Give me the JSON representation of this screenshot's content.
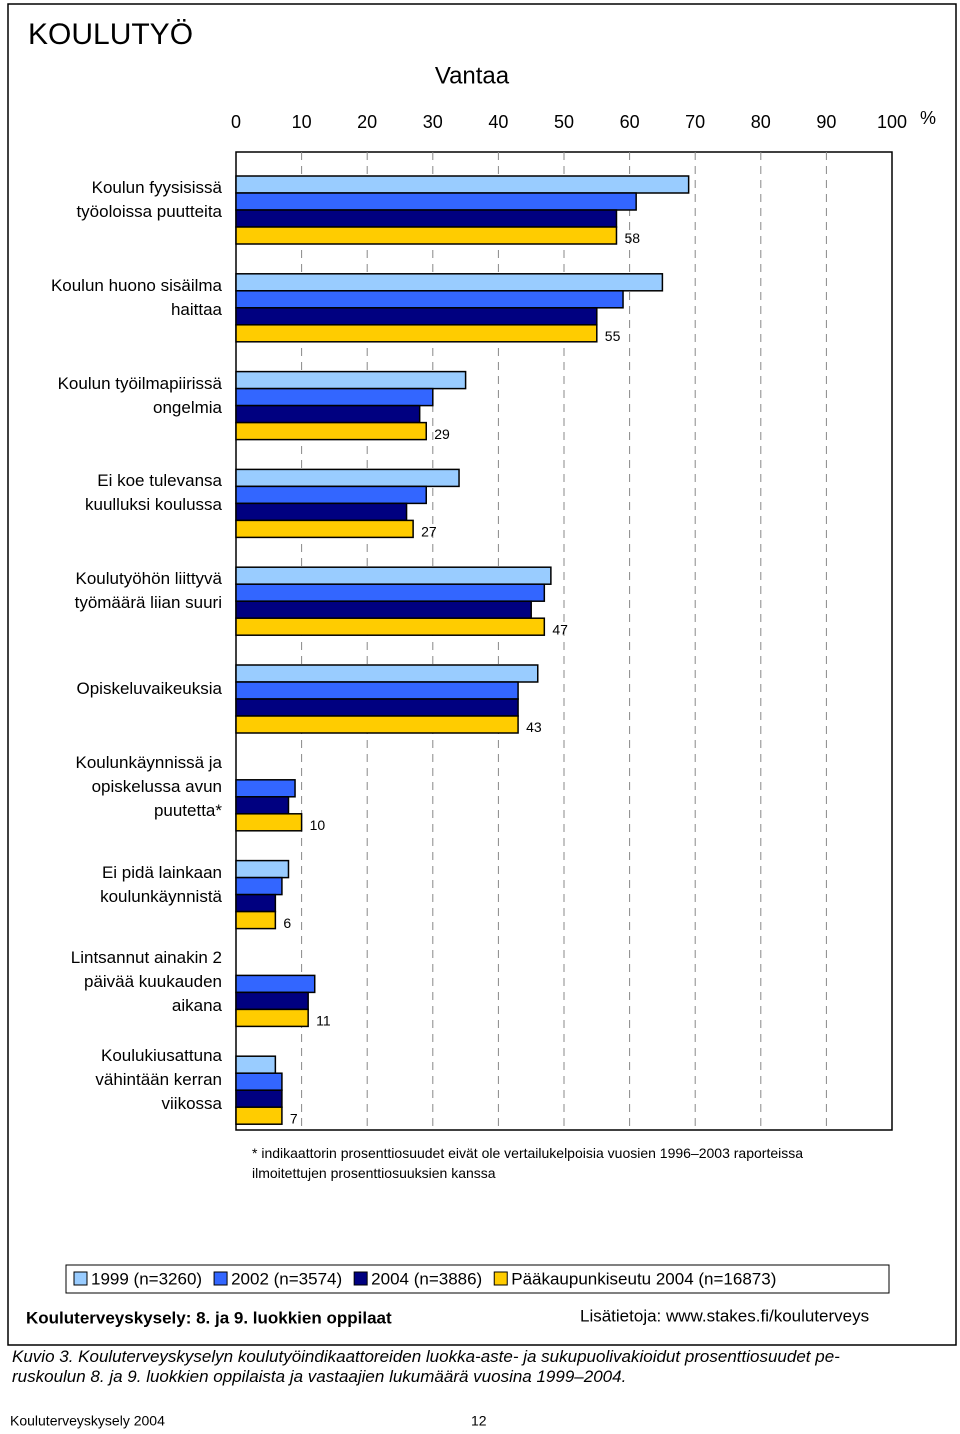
{
  "chart_data": {
    "type": "bar",
    "orientation": "horizontal",
    "title": "KOULUTYÖ",
    "subtitle": "Vantaa",
    "x_unit": "%",
    "categories": [
      "Koulun fyysisissä\ntyöoloissa puutteita",
      "Koulun huono sisäilma\nhaittaa",
      "Koulun työilmapiirissä\nongelmia",
      "Ei koe tulevansa\nkuulluksi koulussa",
      "Koulutyöhön liittyvä\ntyömäärä liian suuri",
      "Opiskeluvaikeuksia",
      "Koulunkäynnissä ja\nopiskelussa avun\npuutetta*",
      "Ei pidä lainkaan\nkoulunkäynnistä",
      "Lintsannut ainakin 2\npäivää kuukauden\naikana",
      "Koulukiusattuna\nvähintään kerran\nviikossa"
    ],
    "series": [
      {
        "name": "1999 (n=3260)",
        "color": "#99ccff",
        "values": [
          69,
          65,
          35,
          34,
          48,
          46,
          null,
          8,
          null,
          6
        ]
      },
      {
        "name": "2002 (n=3574)",
        "color": "#3366ff",
        "values": [
          61,
          59,
          30,
          29,
          47,
          43,
          9,
          7,
          12,
          7
        ]
      },
      {
        "name": "2004 (n=3886)",
        "color": "#000080",
        "values": [
          58,
          55,
          28,
          26,
          45,
          43,
          8,
          6,
          11,
          7
        ]
      },
      {
        "name": "Pääkaupunkiseutu 2004 (n=16873)",
        "color": "#ffcc00",
        "values": [
          58,
          55,
          29,
          27,
          47,
          43,
          10,
          6,
          11,
          7
        ]
      }
    ],
    "label_series": 3,
    "xlim": [
      0,
      100
    ],
    "xticks": [
      0,
      10,
      20,
      30,
      40,
      50,
      60,
      70,
      80,
      90,
      100
    ],
    "grid": true,
    "footnote": "* indikaattorin prosenttiosuudet eivät ole vertailukelpoisia vuosien 1996–2003 raporteissa\nilmoitettujen prosenttiosuuksien kanssa",
    "source": "Kouluterveyskysely: 8. ja 9. luokkien oppilaat",
    "info": "Lisätietoja: www.stakes.fi/kouluterveys"
  },
  "document": {
    "caption": "Kuvio 3. Kouluterveyskyselyn koulutyöindikaattoreiden luokka-aste- ja sukupuolivakioidut prosenttiosuudet pe-\nruskoulun 8. ja 9. luokkien oppilaista ja vastaajien lukumäärä vuosina 1999–2004.",
    "page_footer": "Kouluterveyskysely 2004",
    "page_number": "12"
  }
}
